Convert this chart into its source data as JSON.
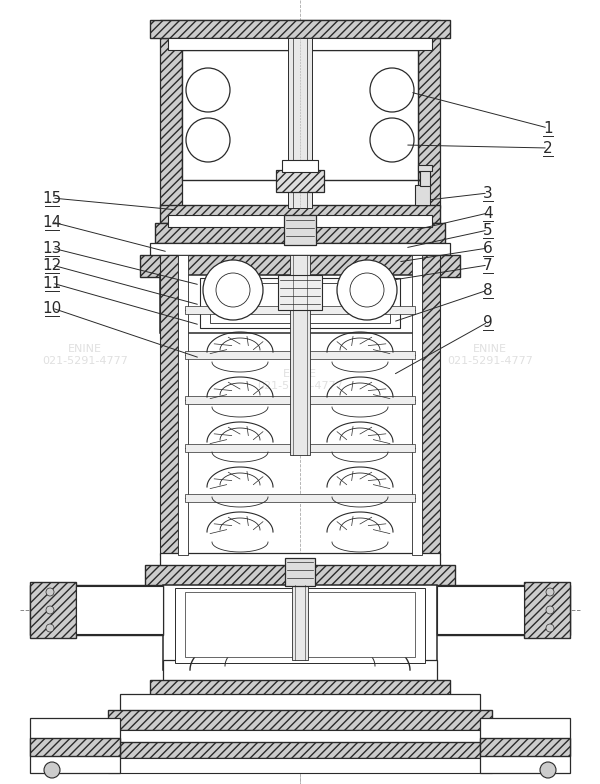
{
  "fig_width": 6.0,
  "fig_height": 7.84,
  "dpi": 100,
  "lc": "#2a2a2a",
  "hc": "#888888",
  "bg": "white",
  "watermark_color": "#cccccc",
  "callouts_left": [
    [
      "15",
      55,
      198,
      175,
      208
    ],
    [
      "14",
      55,
      228,
      168,
      250
    ],
    [
      "13",
      55,
      255,
      200,
      290
    ],
    [
      "12",
      55,
      272,
      200,
      305
    ],
    [
      "11",
      55,
      290,
      200,
      323
    ],
    [
      "10",
      55,
      310,
      200,
      358
    ]
  ],
  "callouts_right": [
    [
      "1",
      545,
      130,
      395,
      95
    ],
    [
      "2",
      545,
      148,
      390,
      140
    ],
    [
      "3",
      488,
      193,
      418,
      205
    ],
    [
      "4",
      488,
      212,
      408,
      228
    ],
    [
      "5",
      488,
      228,
      400,
      248
    ],
    [
      "6",
      488,
      244,
      395,
      260
    ],
    [
      "7",
      488,
      260,
      390,
      278
    ],
    [
      "8",
      488,
      285,
      390,
      318
    ],
    [
      "9",
      488,
      318,
      390,
      370
    ]
  ]
}
